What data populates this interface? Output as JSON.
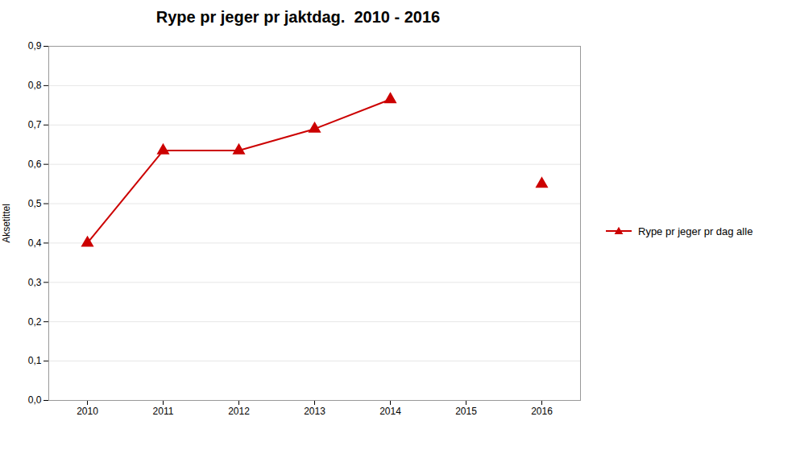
{
  "chart_data": {
    "type": "line",
    "title": "Rype pr jeger pr jaktdag.  2010 - 2016",
    "ylabel": "Aksetittel",
    "categories": [
      "2010",
      "2011",
      "2012",
      "2013",
      "2014",
      "2015",
      "2016"
    ],
    "series": [
      {
        "name": "Rype pr jeger pr dag alle",
        "color": "#cc0000",
        "marker": "triangle",
        "values": [
          0.4,
          0.635,
          0.635,
          0.69,
          0.765,
          null,
          0.55
        ]
      }
    ],
    "ylim": [
      0.0,
      0.9
    ],
    "yticks": [
      {
        "value": 0.0,
        "label": "0,0"
      },
      {
        "value": 0.1,
        "label": "0,1"
      },
      {
        "value": 0.2,
        "label": "0,2"
      },
      {
        "value": 0.3,
        "label": "0,3"
      },
      {
        "value": 0.4,
        "label": "0,4"
      },
      {
        "value": 0.5,
        "label": "0,5"
      },
      {
        "value": 0.6,
        "label": "0,6"
      },
      {
        "value": 0.7,
        "label": "0,7"
      },
      {
        "value": 0.8,
        "label": "0,8"
      },
      {
        "value": 0.9,
        "label": "0,9"
      }
    ],
    "grid": true,
    "legend": "right"
  }
}
